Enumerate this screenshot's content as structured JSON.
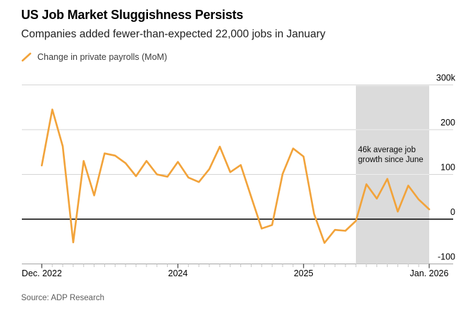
{
  "header": {
    "title": "US Job Market Sluggishness Persists",
    "subtitle": "Companies added fewer-than-expected 22,000 jobs in January"
  },
  "legend": {
    "label": "Change in private payrolls (MoM)"
  },
  "annotation": {
    "line1": "46k average job",
    "line2": "growth since June"
  },
  "source": "Source: ADP Research",
  "colors": {
    "line": "#F2A33A",
    "shade": "#DBDBDB",
    "grid": "#D6D6D6",
    "grid_on_shade": "#EDEDED",
    "zero_line": "#000000",
    "axis_line": "#A6A6A6",
    "minor_tick": "#C6C6C6",
    "major_tick": "#444444"
  },
  "chart_data": {
    "type": "line",
    "title": "US Job Market Sluggishness Persists",
    "subtitle": "Companies added fewer-than-expected 22,000 jobs in January",
    "unit": "thousands of jobs",
    "frequency": "monthly",
    "x": [
      "Dec 2022",
      "Jan 2023",
      "Feb 2023",
      "Mar 2023",
      "Apr 2023",
      "May 2023",
      "Jun 2023",
      "Jul 2023",
      "Aug 2023",
      "Sep 2023",
      "Oct 2023",
      "Nov 2023",
      "Dec 2023",
      "Jan 2024",
      "Feb 2024",
      "Mar 2024",
      "Apr 2024",
      "May 2024",
      "Jun 2024",
      "Jul 2024",
      "Aug 2024",
      "Sep 2024",
      "Oct 2024",
      "Nov 2024",
      "Dec 2024",
      "Jan 2025",
      "Feb 2025",
      "Mar 2025",
      "Apr 2025",
      "May 2025",
      "Jun 2025",
      "Jul 2025",
      "Aug 2025",
      "Sep 2025",
      "Oct 2025",
      "Nov 2025",
      "Dec 2025",
      "Jan 2026"
    ],
    "series": [
      {
        "name": "Change in private payrolls (MoM)",
        "values": [
          120,
          245,
          163,
          -52,
          130,
          53,
          147,
          142,
          125,
          96,
          130,
          100,
          95,
          128,
          93,
          83,
          112,
          162,
          105,
          121,
          50,
          -21,
          -13,
          101,
          158,
          140,
          12,
          -53,
          -24,
          -26,
          -4,
          78,
          46,
          90,
          17,
          75,
          44,
          22
        ]
      }
    ],
    "ylim": [
      -100,
      300
    ],
    "yticks": [
      {
        "label": "300k",
        "value": 300
      },
      {
        "label": "200",
        "value": 200
      },
      {
        "label": "100",
        "value": 100
      },
      {
        "label": "0",
        "value": 0
      },
      {
        "label": "-100",
        "value": -100
      }
    ],
    "xticks": [
      {
        "label": "Dec. 2022",
        "month_index": 0
      },
      {
        "label": "2024",
        "month_index": 13
      },
      {
        "label": "2025",
        "month_index": 25
      },
      {
        "label": "Jan. 2026",
        "month_index": 37
      }
    ],
    "grid": true,
    "legend_position": "top-left",
    "shaded_region": {
      "start": "Jun 2025",
      "end": "Jan 2026",
      "start_month_index": 30,
      "annotation": "46k average job growth since June"
    }
  }
}
